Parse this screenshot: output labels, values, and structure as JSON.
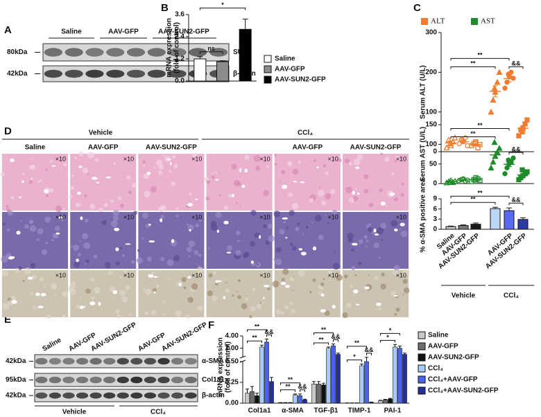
{
  "figure": {
    "panel_labels": [
      "A",
      "B",
      "C",
      "D",
      "E",
      "F"
    ],
    "A": {
      "groups": [
        "Saline",
        "AAV-GFP",
        "AAV-SUN2-GFP"
      ],
      "blots": [
        {
          "size": "80kDa",
          "protein": "SUN2"
        },
        {
          "size": "42kDa",
          "protein": "β-actin"
        }
      ]
    },
    "D": {
      "conditions": [
        "Vehicle",
        "CCl₄"
      ],
      "groups": [
        "Saline",
        "AAV-GFP",
        "AAV-SUN2-GFP",
        "AAV-GFP",
        "AAV-SUN2-GFP"
      ],
      "magnification": "×10"
    },
    "E": {
      "lanes": [
        "Saline",
        "AAV-GFP",
        "AAV-SUN2-GFP",
        "AAV-GFP",
        "AAV-SUN2-GFP"
      ],
      "blots": [
        {
          "size": "42kDa",
          "protein": "α-SMA"
        },
        {
          "size": "95kDa",
          "protein": "Col1a1"
        },
        {
          "size": "42kDa",
          "protein": "β-actin"
        }
      ],
      "conditions": [
        "Vehicle",
        "CCl₄"
      ]
    }
  },
  "chart_data": [
    {
      "type": "bar",
      "ylabel": [
        "mRNA expression",
        "(fold of control)"
      ],
      "categories": [
        "Saline",
        "AAV-GFP",
        "AAV-SUN2-GFP"
      ],
      "values": [
        1.2,
        1.05,
        2.8
      ],
      "errors": [
        0.12,
        0.05,
        0.55
      ],
      "colors": [
        "#ffffff",
        "#8c8c8c",
        "#000000"
      ],
      "ylim": [
        0,
        3.6
      ],
      "yticks": [
        {
          "value": 0,
          "label": "0.0"
        },
        1.2,
        2.4,
        3.6
      ],
      "annotations": [
        "ns",
        "*"
      ],
      "legend": true
    },
    {
      "type": "dotplot",
      "ylabel": "Serum ALT (U/L)",
      "series": [
        {
          "name": "ALT",
          "color": "#f07c30",
          "groups": [
            {
              "points": [
                10,
                30,
                15,
                25,
                35,
                20
              ],
              "mean": 22,
              "sem": 5
            },
            {
              "points": [
                20,
                30,
                25,
                35,
                15,
                28
              ],
              "mean": 25,
              "sem": 3
            },
            {
              "points": [
                15,
                20,
                25,
                10,
                18,
                22
              ],
              "mean": 18,
              "sem": 2
            },
            {
              "points": [
                100,
                130,
                150,
                175,
                200,
                160
              ],
              "mean": 152,
              "sem": 14
            },
            {
              "points": [
                160,
                175,
                190,
                200,
                185,
                195
              ],
              "mean": 184,
              "sem": 8
            },
            {
              "points": [
                40,
                55,
                60,
                70,
                80,
                50
              ],
              "mean": 59,
              "sem": 6
            }
          ]
        }
      ],
      "markers": [
        "triangle",
        "circle",
        "square",
        "triangle",
        "circle",
        "square"
      ],
      "filled": [
        false,
        false,
        false,
        true,
        true,
        true
      ],
      "ylim": [
        0,
        300
      ],
      "yticks": [
        0,
        100,
        200,
        300
      ],
      "annotations": [
        "**",
        "**",
        "&&"
      ]
    },
    {
      "type": "dotplot",
      "ylabel": "Serum AST (U/L)",
      "series": [
        {
          "name": "AST",
          "color": "#1f8a2a",
          "groups": [
            {
              "points": [
                2,
                5,
                8,
                3,
                6,
                4
              ],
              "mean": 5,
              "sem": 1
            },
            {
              "points": [
                8,
                10,
                12,
                6,
                9,
                11
              ],
              "mean": 9,
              "sem": 1
            },
            {
              "points": [
                5,
                10,
                15,
                12,
                8,
                9
              ],
              "mean": 10,
              "sem": 1.5
            },
            {
              "points": [
                40,
                55,
                70,
                80,
                90,
                105
              ],
              "mean": 73,
              "sem": 9
            },
            {
              "points": [
                25,
                40,
                50,
                55,
                65,
                60
              ],
              "mean": 49,
              "sem": 6
            },
            {
              "points": [
                10,
                15,
                20,
                25,
                30,
                35
              ],
              "mean": 22,
              "sem": 4
            }
          ]
        }
      ],
      "markers": [
        "triangle",
        "circle",
        "square",
        "triangle",
        "circle",
        "square"
      ],
      "filled": [
        false,
        false,
        false,
        true,
        true,
        true
      ],
      "ylim": [
        0,
        150
      ],
      "yticks": [
        0,
        50,
        100,
        150
      ],
      "annotations": [
        "**",
        "**",
        "&&"
      ]
    },
    {
      "type": "bar",
      "ylabel": "% α-SMA positive area",
      "categories": [
        "Saline",
        "AAV-GFP",
        "AAV-SUN2-GFP",
        null,
        "AAV-GFP",
        "AAV-SUN2-GFP"
      ],
      "values": [
        0.8,
        1.1,
        1.5,
        6.1,
        5.5,
        2.9
      ],
      "errors": [
        0.15,
        0.2,
        0.35,
        0.4,
        0.8,
        0.5
      ],
      "colors": [
        "#c8c8c8",
        "#7a7a7a",
        "#1a1a1a",
        "#bcd7f5",
        "#5a6af0",
        "#2a3aa8"
      ],
      "ylim": [
        0,
        9
      ],
      "yticks": [
        0,
        3,
        6,
        9
      ],
      "group_labels": [
        "Vehicle",
        "CCl₄"
      ],
      "annotations": [
        "**",
        "**",
        "&&"
      ]
    },
    {
      "type": "grouped-bar",
      "ylabel": [
        "mRNA expression",
        "(fold of control)"
      ],
      "categories": [
        "Col1a1",
        "α-SMA",
        "TGF-β1",
        "TIMP-1",
        "PAI-1"
      ],
      "series": [
        {
          "name": "Saline",
          "color": "#c8c8c8",
          "values": [
            0.12,
            0.005,
            0.23,
            0.002,
            0.03
          ],
          "errors": [
            0.05,
            0.002,
            0.03,
            0.001,
            0.005
          ]
        },
        {
          "name": "AAV-GFP",
          "color": "#6e6e6e",
          "values": [
            0.14,
            0.005,
            0.23,
            0.002,
            0.04
          ],
          "errors": [
            0.06,
            0.002,
            0.03,
            0.001,
            0.006
          ]
        },
        {
          "name": "AAV-SUN2-GFP",
          "color": "#111111",
          "values": [
            0.09,
            0.005,
            0.22,
            0.002,
            0.05
          ],
          "errors": [
            0.03,
            0.002,
            0.02,
            0.001,
            0.008
          ]
        },
        {
          "name": "CCl₄",
          "color": "#a9cdf2",
          "values": [
            2.2,
            0.1,
            2.0,
            0.45,
            2.2
          ],
          "errors": [
            0.3,
            0.01,
            0.2,
            0.02,
            0.4
          ]
        },
        {
          "name": "CCl₄+AAV-GFP",
          "color": "#4a63ee",
          "values": [
            3.0,
            0.09,
            2.4,
            0.5,
            2.0
          ],
          "errors": [
            0.5,
            0.02,
            0.3,
            0.02,
            0.35
          ]
        },
        {
          "name": "CCl₄+AAV-SUN2-GFP",
          "color": "#24309a",
          "values": [
            0.26,
            0.04,
            1.0,
            0.01,
            1.0
          ],
          "errors": [
            0.05,
            0.008,
            0.2,
            0.003,
            0.2
          ]
        }
      ],
      "ylim_lower": [
        0,
        0.5
      ],
      "ylim_upper": [
        0.5,
        4
      ],
      "yticks": [
        {
          "value": 0,
          "label": "0.00"
        },
        {
          "value": 0.25,
          "label": "0.25"
        },
        {
          "value": 0.5,
          "label": "0.50"
        },
        {
          "value": 2,
          "label": "2.00"
        },
        {
          "value": 4,
          "label": "4.00"
        }
      ],
      "annotations": [
        [
          "**",
          "**",
          "&&"
        ],
        [
          "**",
          "**",
          "&&"
        ],
        [
          "**",
          "**",
          "&&"
        ],
        [
          "**",
          "*",
          "&&"
        ],
        [
          "*",
          "*"
        ]
      ]
    }
  ]
}
